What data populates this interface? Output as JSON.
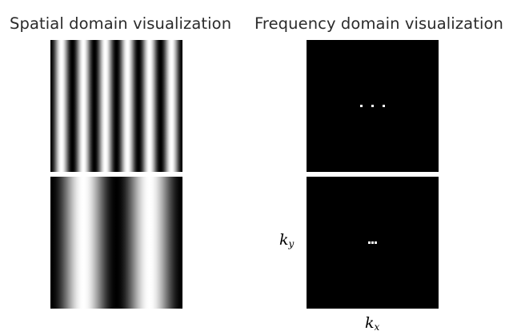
{
  "titles": {
    "spatial": "Spatial domain visualization",
    "frequency": "Frequency domain visualization"
  },
  "axes": {
    "ky_base": "k",
    "ky_sub": "y",
    "kx_base": "k",
    "kx_sub": "x"
  },
  "panels": {
    "spatial_high_frequency_cycles": 6,
    "spatial_low_frequency_cycles": 2,
    "frequency_high_dot_spacing": 14,
    "frequency_low_dot_spacing": 4
  },
  "colors": {
    "background": "#ffffff",
    "panel_background": "#000000",
    "dot": "#ffffff",
    "title_text": "#2b2b2b"
  }
}
